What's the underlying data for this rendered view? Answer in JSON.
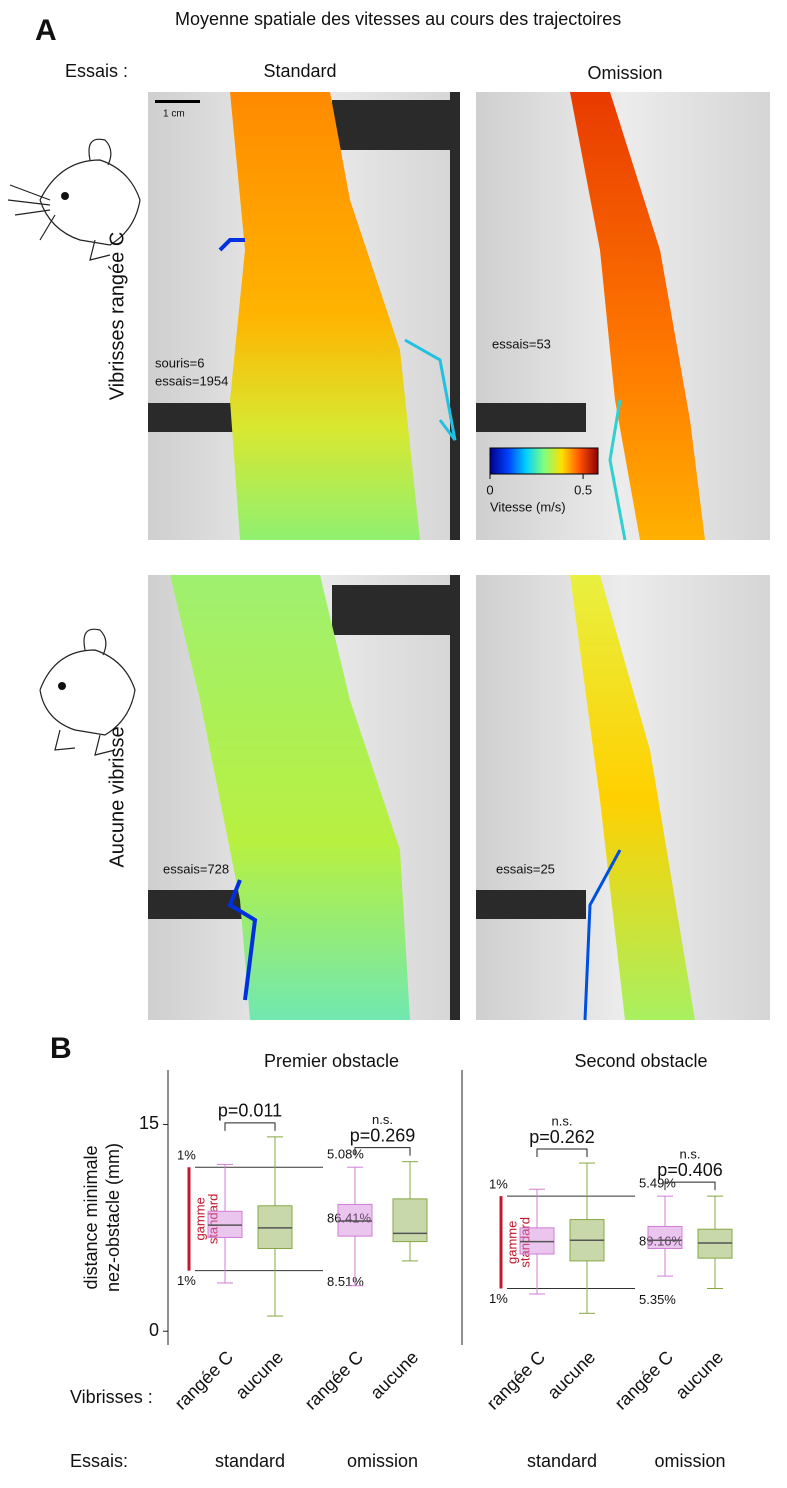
{
  "panel_a": {
    "label": "A",
    "title": "Moyenne spatiale des vitesses au cours des trajectoires",
    "row_header": "Essais :",
    "columns": [
      "Standard",
      "Omission"
    ],
    "scale_bar": "1 cm",
    "rows": [
      "Vibrisses rangée C",
      "Aucune vibrisse"
    ],
    "annotations": [
      [
        "souris=6",
        "essais=1954"
      ],
      [
        "essais=53"
      ],
      [
        "essais=728"
      ],
      [
        "essais=25"
      ]
    ],
    "colorbar": {
      "label": "Vitesse (m/s)",
      "lim": [
        0,
        0.58
      ],
      "ticks": [
        0,
        0.5
      ],
      "colors": [
        "#00008f",
        "#0040ff",
        "#00cfff",
        "#7fff7f",
        "#ffdf00",
        "#ff5000",
        "#8f0000"
      ]
    }
  },
  "panel_b": {
    "label": "B"
  },
  "chart_data": [
    {
      "type": "box",
      "title": "Premier obstacle",
      "ylabel": [
        "distance minimale",
        "nez-obstacle (mm)"
      ],
      "xlabel_rows": [
        "Vibrisses :",
        "Essais:"
      ],
      "categories": [
        "rangée C",
        "aucune",
        "rangée C",
        "aucune"
      ],
      "groups": [
        "standard",
        "omission"
      ],
      "ylim": [
        -1,
        17.5
      ],
      "yticks": [
        0,
        15
      ],
      "boxes": [
        {
          "low": 3.5,
          "q1": 6.8,
          "median": 7.7,
          "q3": 8.7,
          "high": 12.1,
          "color": "#d07ed6"
        },
        {
          "low": 1.1,
          "q1": 6.0,
          "median": 7.5,
          "q3": 9.1,
          "high": 14.1,
          "color": "#86a843"
        },
        {
          "low": 3.3,
          "q1": 6.9,
          "median": 8.0,
          "q3": 9.2,
          "high": 11.9,
          "color": "#d07ed6"
        },
        {
          "low": 5.1,
          "q1": 6.5,
          "median": 7.1,
          "q3": 9.6,
          "high": 12.3,
          "color": "#86a843"
        }
      ],
      "range": {
        "label": [
          "gamme",
          "standard"
        ],
        "color": "#c0182e",
        "lines": [
          {
            "value": 11.9,
            "quantile": "1%",
            "beyond": "5.08%"
          },
          {
            "value": 4.4,
            "quantile": "1%",
            "beyond": "8.51%"
          }
        ],
        "inside": "86.41%"
      },
      "comparisons": [
        [
          "p=0.011"
        ],
        [
          "n.s.",
          "p=0.269"
        ]
      ]
    },
    {
      "type": "box",
      "title": "Second obstacle",
      "categories": [
        "rangée C",
        "aucune",
        "rangée C",
        "aucune"
      ],
      "groups": [
        "standard",
        "omission"
      ],
      "ylim": [
        -1,
        17.5
      ],
      "boxes": [
        {
          "low": 2.7,
          "q1": 5.6,
          "median": 6.5,
          "q3": 7.5,
          "high": 10.3,
          "color": "#d07ed6"
        },
        {
          "low": 1.3,
          "q1": 5.1,
          "median": 6.6,
          "q3": 8.1,
          "high": 12.2,
          "color": "#86a843"
        },
        {
          "low": 4.0,
          "q1": 6.0,
          "median": 6.6,
          "q3": 7.6,
          "high": 9.8,
          "color": "#d07ed6"
        },
        {
          "low": 3.1,
          "q1": 5.3,
          "median": 6.4,
          "q3": 7.4,
          "high": 9.8,
          "color": "#86a843"
        }
      ],
      "range": {
        "label": [
          "gamme",
          "standard"
        ],
        "color": "#c0182e",
        "lines": [
          {
            "value": 9.8,
            "quantile": "1%",
            "beyond": "5.49%"
          },
          {
            "value": 3.1,
            "quantile": "1%",
            "beyond": "5.35%"
          }
        ],
        "inside": "89.16%"
      },
      "comparisons": [
        [
          "n.s.",
          "p=0.262"
        ],
        [
          "n.s.",
          "p=0.406"
        ]
      ]
    }
  ]
}
